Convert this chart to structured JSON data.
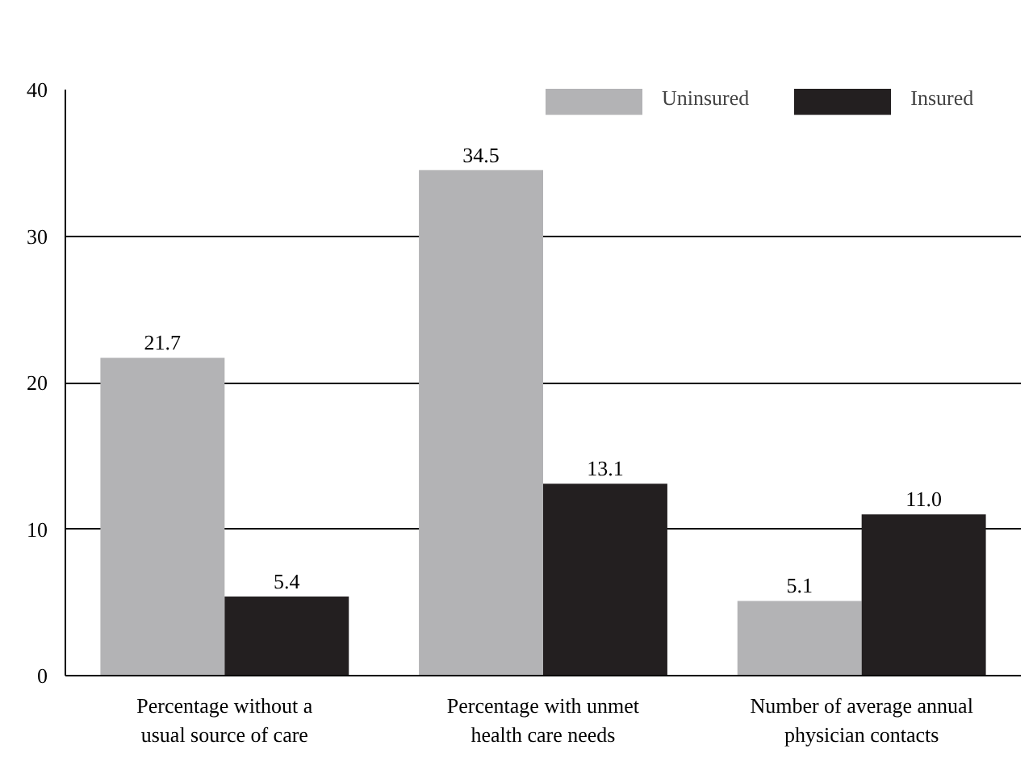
{
  "chart_data": {
    "type": "bar",
    "categories": [
      "Percentage without a usual source of care",
      "Percentage with unmet health care needs",
      "Number of average annual physician contacts"
    ],
    "series": [
      {
        "name": "Uninsured",
        "color": "#b3b3b5",
        "values": [
          21.7,
          34.5,
          5.1
        ],
        "value_labels": [
          "21.7",
          "34.5",
          "5.1"
        ]
      },
      {
        "name": "Insured",
        "color": "#231f20",
        "values": [
          5.4,
          13.1,
          11.0
        ],
        "value_labels": [
          "5.4",
          "13.1",
          "11.0"
        ]
      }
    ],
    "ylim": [
      0,
      40
    ],
    "yticks": [
      0,
      10,
      20,
      30,
      40
    ],
    "grid": "y",
    "legend": "top right"
  }
}
